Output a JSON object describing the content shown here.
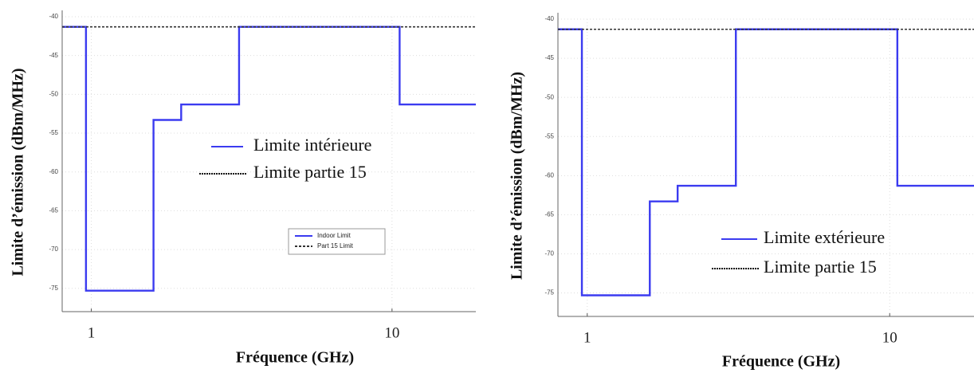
{
  "chart_data": [
    {
      "type": "line",
      "xlabel": "Fréquence (GHz)",
      "ylabel": "Limite d’émission (dBm/MHz)",
      "xscale": "log",
      "xlim": [
        0.8,
        19
      ],
      "xticks": [
        1,
        10
      ],
      "ylim": [
        -40,
        -78
      ],
      "yticks": [
        -40,
        -45,
        -50,
        -55,
        -60,
        -65,
        -70,
        -75
      ],
      "grid": true,
      "legend": "center right",
      "series": [
        {
          "name": "Indoor Limit",
          "label": "Limite intérieure",
          "color": "#3b3bf0",
          "style": "solid",
          "x": [
            0.8,
            0.96,
            0.96,
            1.61,
            1.61,
            1.99,
            1.99,
            3.1,
            3.1,
            10.6,
            10.6,
            19
          ],
          "values": [
            -41.3,
            -41.3,
            -75.3,
            -75.3,
            -53.3,
            -53.3,
            -51.3,
            -51.3,
            -41.3,
            -41.3,
            -51.3,
            -51.3
          ]
        },
        {
          "name": "Part 15 Limit",
          "label": "Limite partie 15",
          "color": "#333333",
          "style": "dashed",
          "x": [
            0.8,
            19
          ],
          "values": [
            -41.3,
            -41.3
          ]
        }
      ]
    },
    {
      "type": "line",
      "xlabel": "Fréquence (GHz)",
      "ylabel": "Limite d’émission (dBm/MHz)",
      "xscale": "log",
      "xlim": [
        0.8,
        19
      ],
      "xticks": [
        1,
        10
      ],
      "ylim": [
        -40,
        -78
      ],
      "yticks": [
        -40,
        -45,
        -50,
        -55,
        -60,
        -65,
        -70,
        -75
      ],
      "grid": true,
      "series": [
        {
          "label": "Limite extérieure",
          "color": "#3b3bf0",
          "style": "solid",
          "x": [
            0.8,
            0.96,
            0.96,
            1.61,
            1.61,
            1.99,
            1.99,
            3.1,
            3.1,
            10.6,
            10.6,
            19
          ],
          "values": [
            -41.3,
            -41.3,
            -75.3,
            -75.3,
            -63.3,
            -63.3,
            -61.3,
            -61.3,
            -41.3,
            -41.3,
            -61.3,
            -61.3
          ]
        },
        {
          "label": "Limite partie 15",
          "color": "#333333",
          "style": "dashed",
          "x": [
            0.8,
            19
          ],
          "values": [
            -41.3,
            -41.3
          ]
        }
      ]
    }
  ]
}
